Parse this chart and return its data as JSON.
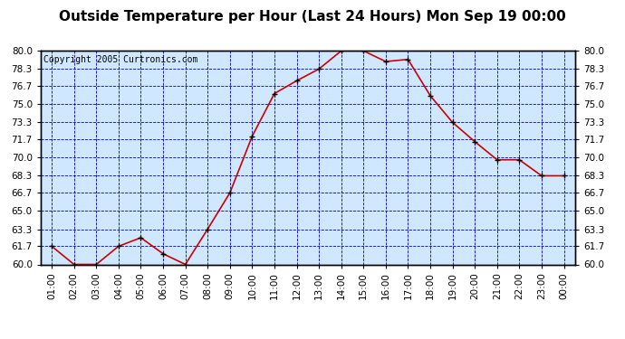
{
  "title": "Outside Temperature per Hour (Last 24 Hours) Mon Sep 19 00:00",
  "copyright": "Copyright 2005 Curtronics.com",
  "x_labels": [
    "01:00",
    "02:00",
    "03:00",
    "04:00",
    "05:00",
    "06:00",
    "07:00",
    "08:00",
    "09:00",
    "10:00",
    "11:00",
    "12:00",
    "13:00",
    "14:00",
    "15:00",
    "16:00",
    "17:00",
    "18:00",
    "19:00",
    "20:00",
    "21:00",
    "22:00",
    "23:00",
    "00:00"
  ],
  "y_values": [
    61.7,
    60.0,
    60.0,
    61.7,
    62.5,
    61.0,
    60.0,
    63.3,
    66.7,
    72.0,
    76.0,
    77.2,
    78.3,
    80.0,
    80.0,
    79.0,
    79.2,
    75.8,
    73.3,
    71.5,
    69.8,
    69.8,
    68.3,
    68.3
  ],
  "line_color": "#cc0000",
  "marker_color": "#000000",
  "bg_color": "#d0e8ff",
  "outer_bg": "#ffffff",
  "grid_color": "#0000bb",
  "ylim": [
    60.0,
    80.0
  ],
  "yticks": [
    60.0,
    61.7,
    63.3,
    65.0,
    66.7,
    68.3,
    70.0,
    71.7,
    73.3,
    75.0,
    76.7,
    78.3,
    80.0
  ],
  "title_fontsize": 11,
  "copyright_fontsize": 7
}
